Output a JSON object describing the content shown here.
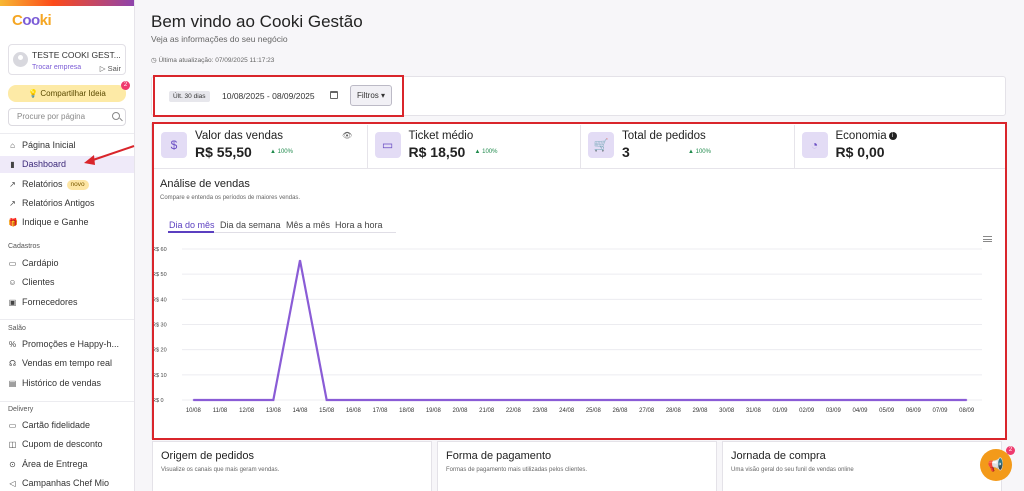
{
  "app": {
    "logo_text_a": "C",
    "logo_text_b": "oo",
    "logo_text_c": "ki"
  },
  "account": {
    "name": "TESTE COOKI GEST...",
    "switch_label": "Trocar empresa",
    "logout_label": "Sair"
  },
  "share": {
    "label": "Compartilhar Ideia",
    "badge": "2"
  },
  "search": {
    "placeholder": "Procure por página"
  },
  "sidebar": {
    "items": [
      {
        "label": "Página Inicial",
        "icon": "home-icon",
        "glyph": "⌂"
      },
      {
        "label": "Dashboard",
        "icon": "bar-chart-icon",
        "glyph": "▮"
      },
      {
        "label": "Relatórios",
        "icon": "trend-icon",
        "glyph": "↗",
        "pill": "novo"
      },
      {
        "label": "Relatórios Antigos",
        "icon": "trend-icon",
        "glyph": "↗"
      },
      {
        "label": "Indique e Ganhe",
        "icon": "gift-icon",
        "glyph": "🎁"
      }
    ],
    "section_cadastros": "Cadastros",
    "cadastros": [
      {
        "label": "Cardápio",
        "icon": "book-icon",
        "glyph": "▭"
      },
      {
        "label": "Clientes",
        "icon": "users-icon",
        "glyph": "☺"
      },
      {
        "label": "Fornecedores",
        "icon": "truck-icon",
        "glyph": "▣"
      }
    ],
    "section_salao": "Salão",
    "salao": [
      {
        "label": "Promoções e Happy-h...",
        "icon": "percent-icon",
        "glyph": "%"
      },
      {
        "label": "Vendas em tempo real",
        "icon": "broadcast-icon",
        "glyph": "☊"
      },
      {
        "label": "Histórico de vendas",
        "icon": "receipt-icon",
        "glyph": "▤"
      }
    ],
    "section_delivery": "Delivery",
    "delivery": [
      {
        "label": "Cartão fidelidade",
        "icon": "card-icon",
        "glyph": "▭"
      },
      {
        "label": "Cupom de desconto",
        "icon": "coupon-icon",
        "glyph": "◫"
      },
      {
        "label": "Área de Entrega",
        "icon": "map-pin-icon",
        "glyph": "⊙"
      },
      {
        "label": "Campanhas Chef Mio",
        "icon": "megaphone-icon",
        "glyph": "◁"
      }
    ]
  },
  "header": {
    "title": "Bem vindo ao Cooki Gestão",
    "subtitle": "Veja as informações do seu negócio",
    "updated": "Última atualização: 07/09/2025 11:17:23"
  },
  "filters": {
    "range_tag": "Últ. 30 dias",
    "range_text": "10/08/2025 - 08/09/2025",
    "filter_label": "Filtros"
  },
  "kpis": [
    {
      "label": "Valor das vendas",
      "value": "R$ 55,50",
      "change": "100%",
      "glyph": "$"
    },
    {
      "label": "Ticket médio",
      "value": "R$ 18,50",
      "change": "100%",
      "glyph": "▭"
    },
    {
      "label": "Total de pedidos",
      "value": "3",
      "change": "100%",
      "glyph": "🛒"
    },
    {
      "label": "Economia",
      "value": "R$ 0,00",
      "change": "",
      "glyph": "◔"
    }
  ],
  "analysis": {
    "title": "Análise de vendas",
    "subtitle": "Compare e entenda os períodos de maiores vendas.",
    "tabs": [
      "Dia do mês",
      "Dia da semana",
      "Mês a mês",
      "Hora a hora"
    ]
  },
  "chart_data": {
    "type": "line",
    "title": "",
    "x": [
      "10/08",
      "11/08",
      "12/08",
      "13/08",
      "14/08",
      "15/08",
      "16/08",
      "17/08",
      "18/08",
      "19/08",
      "20/08",
      "21/08",
      "22/08",
      "23/08",
      "24/08",
      "25/08",
      "26/08",
      "27/08",
      "28/08",
      "29/08",
      "30/08",
      "31/08",
      "01/09",
      "02/09",
      "03/09",
      "04/09",
      "05/09",
      "06/09",
      "07/09",
      "08/09"
    ],
    "series": [
      {
        "values": [
          0,
          0,
          0,
          0,
          55.5,
          0,
          0,
          0,
          0,
          0,
          0,
          0,
          0,
          0,
          0,
          0,
          0,
          0,
          0,
          0,
          0,
          0,
          0,
          0,
          0,
          0,
          0,
          0,
          0,
          0
        ]
      }
    ],
    "yticks": [
      "R$ 0",
      "R$ 10",
      "R$ 20",
      "R$ 30",
      "R$ 40",
      "R$ 50",
      "R$ 60"
    ],
    "ylim": [
      0,
      60
    ],
    "color": "#8a5cd6",
    "grid": true
  },
  "bottom_cards": [
    {
      "title": "Origem de pedidos",
      "subtitle": "Visualize os canais que mais geram vendas."
    },
    {
      "title": "Forma de pagamento",
      "subtitle": "Formas de pagamento mais utilizadas pelos clientes."
    },
    {
      "title": "Jornada de compra",
      "subtitle": "Uma visão geral do seu funil de vendas online"
    }
  ],
  "fab": {
    "badge": "2"
  }
}
